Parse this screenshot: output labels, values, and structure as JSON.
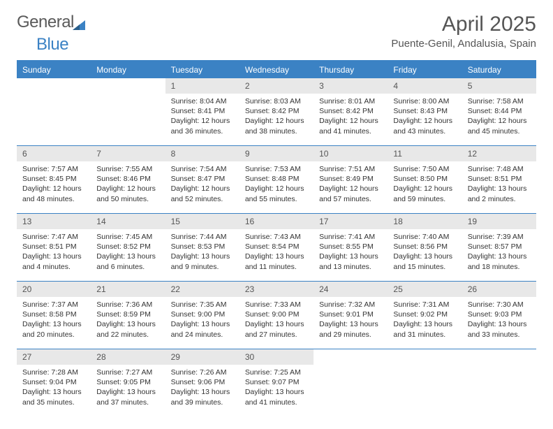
{
  "brand": {
    "part1": "General",
    "part2": "Blue"
  },
  "title": "April 2025",
  "location": "Puente-Genil, Andalusia, Spain",
  "colors": {
    "accent": "#3b82c4",
    "header_bg": "#3b82c4",
    "daynum_bg": "#e8e8e8"
  },
  "day_names": [
    "Sunday",
    "Monday",
    "Tuesday",
    "Wednesday",
    "Thursday",
    "Friday",
    "Saturday"
  ],
  "weeks": [
    [
      null,
      null,
      {
        "n": "1",
        "sr": "Sunrise: 8:04 AM",
        "ss": "Sunset: 8:41 PM",
        "dl1": "Daylight: 12 hours",
        "dl2": "and 36 minutes."
      },
      {
        "n": "2",
        "sr": "Sunrise: 8:03 AM",
        "ss": "Sunset: 8:42 PM",
        "dl1": "Daylight: 12 hours",
        "dl2": "and 38 minutes."
      },
      {
        "n": "3",
        "sr": "Sunrise: 8:01 AM",
        "ss": "Sunset: 8:42 PM",
        "dl1": "Daylight: 12 hours",
        "dl2": "and 41 minutes."
      },
      {
        "n": "4",
        "sr": "Sunrise: 8:00 AM",
        "ss": "Sunset: 8:43 PM",
        "dl1": "Daylight: 12 hours",
        "dl2": "and 43 minutes."
      },
      {
        "n": "5",
        "sr": "Sunrise: 7:58 AM",
        "ss": "Sunset: 8:44 PM",
        "dl1": "Daylight: 12 hours",
        "dl2": "and 45 minutes."
      }
    ],
    [
      {
        "n": "6",
        "sr": "Sunrise: 7:57 AM",
        "ss": "Sunset: 8:45 PM",
        "dl1": "Daylight: 12 hours",
        "dl2": "and 48 minutes."
      },
      {
        "n": "7",
        "sr": "Sunrise: 7:55 AM",
        "ss": "Sunset: 8:46 PM",
        "dl1": "Daylight: 12 hours",
        "dl2": "and 50 minutes."
      },
      {
        "n": "8",
        "sr": "Sunrise: 7:54 AM",
        "ss": "Sunset: 8:47 PM",
        "dl1": "Daylight: 12 hours",
        "dl2": "and 52 minutes."
      },
      {
        "n": "9",
        "sr": "Sunrise: 7:53 AM",
        "ss": "Sunset: 8:48 PM",
        "dl1": "Daylight: 12 hours",
        "dl2": "and 55 minutes."
      },
      {
        "n": "10",
        "sr": "Sunrise: 7:51 AM",
        "ss": "Sunset: 8:49 PM",
        "dl1": "Daylight: 12 hours",
        "dl2": "and 57 minutes."
      },
      {
        "n": "11",
        "sr": "Sunrise: 7:50 AM",
        "ss": "Sunset: 8:50 PM",
        "dl1": "Daylight: 12 hours",
        "dl2": "and 59 minutes."
      },
      {
        "n": "12",
        "sr": "Sunrise: 7:48 AM",
        "ss": "Sunset: 8:51 PM",
        "dl1": "Daylight: 13 hours",
        "dl2": "and 2 minutes."
      }
    ],
    [
      {
        "n": "13",
        "sr": "Sunrise: 7:47 AM",
        "ss": "Sunset: 8:51 PM",
        "dl1": "Daylight: 13 hours",
        "dl2": "and 4 minutes."
      },
      {
        "n": "14",
        "sr": "Sunrise: 7:45 AM",
        "ss": "Sunset: 8:52 PM",
        "dl1": "Daylight: 13 hours",
        "dl2": "and 6 minutes."
      },
      {
        "n": "15",
        "sr": "Sunrise: 7:44 AM",
        "ss": "Sunset: 8:53 PM",
        "dl1": "Daylight: 13 hours",
        "dl2": "and 9 minutes."
      },
      {
        "n": "16",
        "sr": "Sunrise: 7:43 AM",
        "ss": "Sunset: 8:54 PM",
        "dl1": "Daylight: 13 hours",
        "dl2": "and 11 minutes."
      },
      {
        "n": "17",
        "sr": "Sunrise: 7:41 AM",
        "ss": "Sunset: 8:55 PM",
        "dl1": "Daylight: 13 hours",
        "dl2": "and 13 minutes."
      },
      {
        "n": "18",
        "sr": "Sunrise: 7:40 AM",
        "ss": "Sunset: 8:56 PM",
        "dl1": "Daylight: 13 hours",
        "dl2": "and 15 minutes."
      },
      {
        "n": "19",
        "sr": "Sunrise: 7:39 AM",
        "ss": "Sunset: 8:57 PM",
        "dl1": "Daylight: 13 hours",
        "dl2": "and 18 minutes."
      }
    ],
    [
      {
        "n": "20",
        "sr": "Sunrise: 7:37 AM",
        "ss": "Sunset: 8:58 PM",
        "dl1": "Daylight: 13 hours",
        "dl2": "and 20 minutes."
      },
      {
        "n": "21",
        "sr": "Sunrise: 7:36 AM",
        "ss": "Sunset: 8:59 PM",
        "dl1": "Daylight: 13 hours",
        "dl2": "and 22 minutes."
      },
      {
        "n": "22",
        "sr": "Sunrise: 7:35 AM",
        "ss": "Sunset: 9:00 PM",
        "dl1": "Daylight: 13 hours",
        "dl2": "and 24 minutes."
      },
      {
        "n": "23",
        "sr": "Sunrise: 7:33 AM",
        "ss": "Sunset: 9:00 PM",
        "dl1": "Daylight: 13 hours",
        "dl2": "and 27 minutes."
      },
      {
        "n": "24",
        "sr": "Sunrise: 7:32 AM",
        "ss": "Sunset: 9:01 PM",
        "dl1": "Daylight: 13 hours",
        "dl2": "and 29 minutes."
      },
      {
        "n": "25",
        "sr": "Sunrise: 7:31 AM",
        "ss": "Sunset: 9:02 PM",
        "dl1": "Daylight: 13 hours",
        "dl2": "and 31 minutes."
      },
      {
        "n": "26",
        "sr": "Sunrise: 7:30 AM",
        "ss": "Sunset: 9:03 PM",
        "dl1": "Daylight: 13 hours",
        "dl2": "and 33 minutes."
      }
    ],
    [
      {
        "n": "27",
        "sr": "Sunrise: 7:28 AM",
        "ss": "Sunset: 9:04 PM",
        "dl1": "Daylight: 13 hours",
        "dl2": "and 35 minutes."
      },
      {
        "n": "28",
        "sr": "Sunrise: 7:27 AM",
        "ss": "Sunset: 9:05 PM",
        "dl1": "Daylight: 13 hours",
        "dl2": "and 37 minutes."
      },
      {
        "n": "29",
        "sr": "Sunrise: 7:26 AM",
        "ss": "Sunset: 9:06 PM",
        "dl1": "Daylight: 13 hours",
        "dl2": "and 39 minutes."
      },
      {
        "n": "30",
        "sr": "Sunrise: 7:25 AM",
        "ss": "Sunset: 9:07 PM",
        "dl1": "Daylight: 13 hours",
        "dl2": "and 41 minutes."
      },
      null,
      null,
      null
    ]
  ]
}
